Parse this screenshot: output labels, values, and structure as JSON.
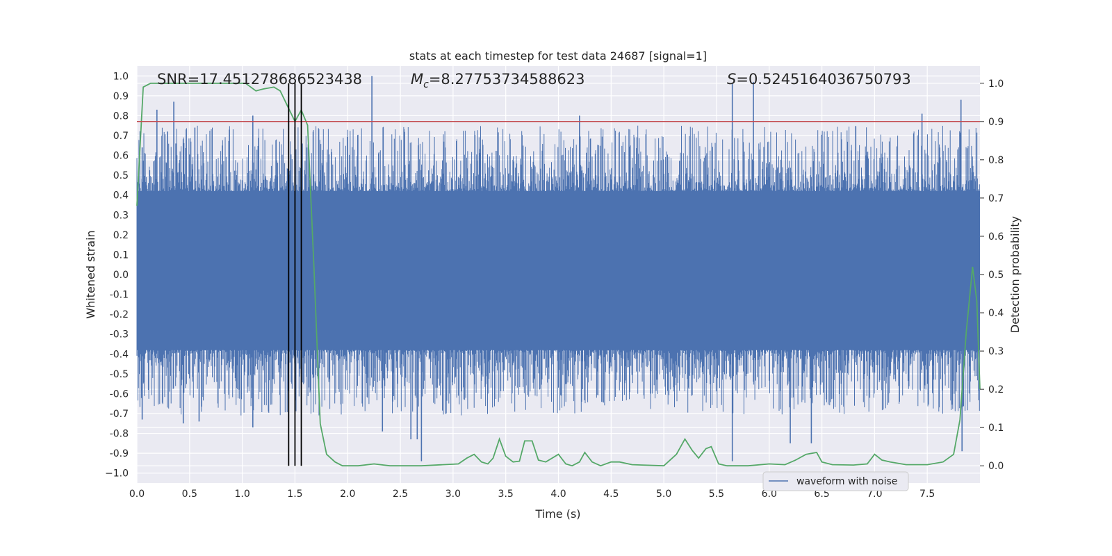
{
  "chart_data": {
    "type": "line",
    "title": "stats at each timestep for test data 24687 [signal=1]",
    "xlabel": "Time (s)",
    "ylabel": "Whitened strain",
    "ylabel_right": "Detection probability",
    "xlim": [
      0.0,
      8.0
    ],
    "ylim": [
      -1.05,
      1.05
    ],
    "ylim_right": [
      -0.045,
      1.045
    ],
    "x_ticks": [
      "0.0",
      "0.5",
      "1.0",
      "1.5",
      "2.0",
      "2.5",
      "3.0",
      "3.5",
      "4.0",
      "4.5",
      "5.0",
      "5.5",
      "6.0",
      "6.5",
      "7.0",
      "7.5"
    ],
    "y_ticks": [
      "1.0",
      "0.9",
      "0.8",
      "0.7",
      "0.6",
      "0.5",
      "0.4",
      "0.3",
      "0.2",
      "0.1",
      "0.0",
      "-0.1",
      "-0.2",
      "-0.3",
      "-0.4",
      "-0.5",
      "-0.6",
      "-0.7",
      "-0.8",
      "-0.9",
      "−1.0"
    ],
    "y_right_ticks": [
      "1.0",
      "0.9",
      "0.8",
      "0.7",
      "0.6",
      "0.5",
      "0.4",
      "0.3",
      "0.2",
      "0.1",
      "0.0"
    ],
    "grid": true,
    "legend": {
      "position": "lower-right",
      "entries": [
        "waveform with noise"
      ]
    },
    "annotations": {
      "snr": "SNR=17.451278686523438",
      "mc_symbol": "M",
      "mc_sub": "c",
      "mc_value": "=8.27753734588623",
      "s_symbol": "S",
      "s_value": "=0.5245164036750793"
    },
    "threshold_right": 0.9,
    "vertical_lines_x": [
      1.44,
      1.5,
      1.56
    ],
    "series": [
      {
        "name": "waveform with noise",
        "axis": "left",
        "color": "#4c72b0",
        "style": "noisy-strain",
        "core_range": [
          -0.38,
          0.42
        ],
        "spikes": [
          {
            "x": 0.05,
            "y": 0.64
          },
          {
            "x": 0.05,
            "y": -0.73
          },
          {
            "x": 0.19,
            "y": 0.83
          },
          {
            "x": 0.29,
            "y": 0.72
          },
          {
            "x": 0.35,
            "y": 0.87
          },
          {
            "x": 0.37,
            "y": 0.66
          },
          {
            "x": 0.44,
            "y": -0.75
          },
          {
            "x": 0.55,
            "y": 0.74
          },
          {
            "x": 0.59,
            "y": -0.74
          },
          {
            "x": 1.1,
            "y": 0.8
          },
          {
            "x": 1.1,
            "y": -0.77
          },
          {
            "x": 2.23,
            "y": 1.0
          },
          {
            "x": 2.33,
            "y": -0.79
          },
          {
            "x": 2.6,
            "y": -0.83
          },
          {
            "x": 2.66,
            "y": -0.83
          },
          {
            "x": 2.7,
            "y": -0.94
          },
          {
            "x": 4.2,
            "y": 0.8
          },
          {
            "x": 5.65,
            "y": 0.96
          },
          {
            "x": 5.65,
            "y": -0.94
          },
          {
            "x": 5.85,
            "y": 0.97
          },
          {
            "x": 6.2,
            "y": -0.85
          },
          {
            "x": 6.4,
            "y": -0.85
          },
          {
            "x": 7.45,
            "y": 0.81
          },
          {
            "x": 7.82,
            "y": 0.88
          },
          {
            "x": 7.83,
            "y": -0.89
          }
        ]
      },
      {
        "name": "",
        "axis": "right",
        "color": "#55a868",
        "points": [
          [
            0.0,
            0.68
          ],
          [
            0.06,
            0.99
          ],
          [
            0.13,
            1.0
          ],
          [
            0.3,
            1.0
          ],
          [
            0.5,
            1.0
          ],
          [
            0.7,
            1.0
          ],
          [
            0.9,
            1.0
          ],
          [
            1.03,
            1.0
          ],
          [
            1.13,
            0.98
          ],
          [
            1.2,
            0.985
          ],
          [
            1.3,
            0.99
          ],
          [
            1.36,
            0.98
          ],
          [
            1.43,
            0.94
          ],
          [
            1.5,
            0.9
          ],
          [
            1.56,
            0.93
          ],
          [
            1.62,
            0.89
          ],
          [
            1.68,
            0.52
          ],
          [
            1.74,
            0.11
          ],
          [
            1.8,
            0.03
          ],
          [
            1.88,
            0.01
          ],
          [
            1.95,
            0.0
          ],
          [
            2.1,
            0.0
          ],
          [
            2.25,
            0.005
          ],
          [
            2.4,
            0.0
          ],
          [
            2.7,
            0.0
          ],
          [
            3.05,
            0.005
          ],
          [
            3.13,
            0.02
          ],
          [
            3.2,
            0.03
          ],
          [
            3.27,
            0.01
          ],
          [
            3.33,
            0.005
          ],
          [
            3.38,
            0.02
          ],
          [
            3.44,
            0.07
          ],
          [
            3.5,
            0.025
          ],
          [
            3.57,
            0.01
          ],
          [
            3.63,
            0.012
          ],
          [
            3.68,
            0.065
          ],
          [
            3.75,
            0.065
          ],
          [
            3.81,
            0.015
          ],
          [
            3.88,
            0.01
          ],
          [
            4.0,
            0.03
          ],
          [
            4.07,
            0.005
          ],
          [
            4.13,
            0.0
          ],
          [
            4.2,
            0.01
          ],
          [
            4.25,
            0.035
          ],
          [
            4.32,
            0.01
          ],
          [
            4.4,
            0.0
          ],
          [
            4.5,
            0.01
          ],
          [
            4.58,
            0.01
          ],
          [
            4.7,
            0.003
          ],
          [
            5.0,
            0.0
          ],
          [
            5.12,
            0.03
          ],
          [
            5.2,
            0.07
          ],
          [
            5.27,
            0.04
          ],
          [
            5.33,
            0.02
          ],
          [
            5.4,
            0.045
          ],
          [
            5.45,
            0.05
          ],
          [
            5.52,
            0.005
          ],
          [
            5.6,
            0.0
          ],
          [
            5.8,
            0.0
          ],
          [
            6.0,
            0.005
          ],
          [
            6.15,
            0.003
          ],
          [
            6.25,
            0.015
          ],
          [
            6.35,
            0.03
          ],
          [
            6.45,
            0.035
          ],
          [
            6.5,
            0.01
          ],
          [
            6.6,
            0.003
          ],
          [
            6.8,
            0.002
          ],
          [
            6.93,
            0.005
          ],
          [
            7.0,
            0.03
          ],
          [
            7.07,
            0.015
          ],
          [
            7.15,
            0.01
          ],
          [
            7.3,
            0.003
          ],
          [
            7.5,
            0.003
          ],
          [
            7.65,
            0.01
          ],
          [
            7.75,
            0.03
          ],
          [
            7.81,
            0.12
          ],
          [
            7.87,
            0.35
          ],
          [
            7.93,
            0.52
          ],
          [
            7.97,
            0.43
          ],
          [
            8.0,
            0.2
          ]
        ]
      }
    ]
  }
}
